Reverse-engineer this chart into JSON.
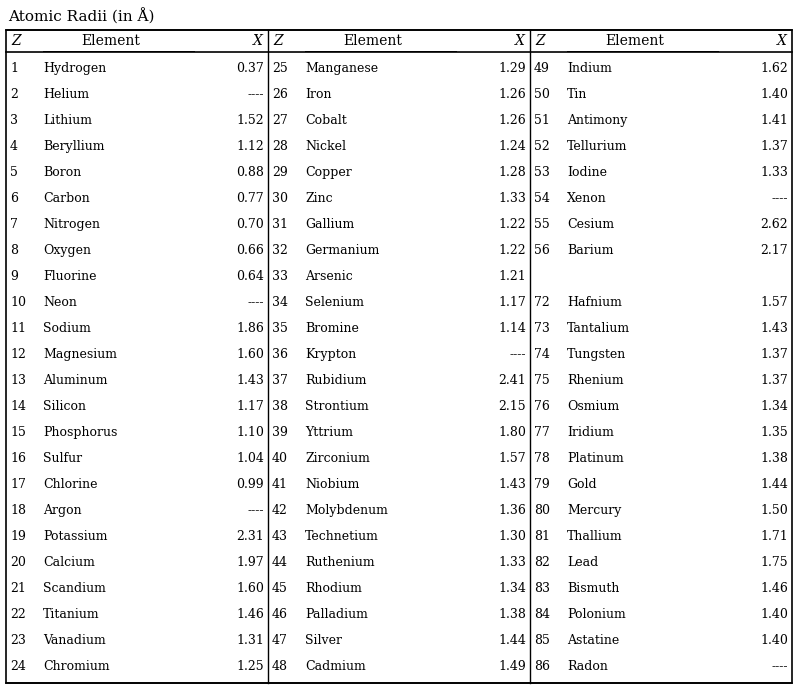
{
  "title": "Atomic Radii (in Å)",
  "col1": [
    [
      1,
      "Hydrogen",
      "0.37"
    ],
    [
      2,
      "Helium",
      "----"
    ],
    [
      3,
      "Lithium",
      "1.52"
    ],
    [
      4,
      "Beryllium",
      "1.12"
    ],
    [
      5,
      "Boron",
      "0.88"
    ],
    [
      6,
      "Carbon",
      "0.77"
    ],
    [
      7,
      "Nitrogen",
      "0.70"
    ],
    [
      8,
      "Oxygen",
      "0.66"
    ],
    [
      9,
      "Fluorine",
      "0.64"
    ],
    [
      10,
      "Neon",
      "----"
    ],
    [
      11,
      "Sodium",
      "1.86"
    ],
    [
      12,
      "Magnesium",
      "1.60"
    ],
    [
      13,
      "Aluminum",
      "1.43"
    ],
    [
      14,
      "Silicon",
      "1.17"
    ],
    [
      15,
      "Phosphorus",
      "1.10"
    ],
    [
      16,
      "Sulfur",
      "1.04"
    ],
    [
      17,
      "Chlorine",
      "0.99"
    ],
    [
      18,
      "Argon",
      "----"
    ],
    [
      19,
      "Potassium",
      "2.31"
    ],
    [
      20,
      "Calcium",
      "1.97"
    ],
    [
      21,
      "Scandium",
      "1.60"
    ],
    [
      22,
      "Titanium",
      "1.46"
    ],
    [
      23,
      "Vanadium",
      "1.31"
    ],
    [
      24,
      "Chromium",
      "1.25"
    ]
  ],
  "col2": [
    [
      25,
      "Manganese",
      "1.29"
    ],
    [
      26,
      "Iron",
      "1.26"
    ],
    [
      27,
      "Cobalt",
      "1.26"
    ],
    [
      28,
      "Nickel",
      "1.24"
    ],
    [
      29,
      "Copper",
      "1.28"
    ],
    [
      30,
      "Zinc",
      "1.33"
    ],
    [
      31,
      "Gallium",
      "1.22"
    ],
    [
      32,
      "Germanium",
      "1.22"
    ],
    [
      33,
      "Arsenic",
      "1.21"
    ],
    [
      34,
      "Selenium",
      "1.17"
    ],
    [
      35,
      "Bromine",
      "1.14"
    ],
    [
      36,
      "Krypton",
      "----"
    ],
    [
      37,
      "Rubidium",
      "2.41"
    ],
    [
      38,
      "Strontium",
      "2.15"
    ],
    [
      39,
      "Yttrium",
      "1.80"
    ],
    [
      40,
      "Zirconium",
      "1.57"
    ],
    [
      41,
      "Niobium",
      "1.43"
    ],
    [
      42,
      "Molybdenum",
      "1.36"
    ],
    [
      43,
      "Technetium",
      "1.30"
    ],
    [
      44,
      "Ruthenium",
      "1.33"
    ],
    [
      45,
      "Rhodium",
      "1.34"
    ],
    [
      46,
      "Palladium",
      "1.38"
    ],
    [
      47,
      "Silver",
      "1.44"
    ],
    [
      48,
      "Cadmium",
      "1.49"
    ]
  ],
  "col3": [
    [
      49,
      "Indium",
      "1.62"
    ],
    [
      50,
      "Tin",
      "1.40"
    ],
    [
      51,
      "Antimony",
      "1.41"
    ],
    [
      52,
      "Tellurium",
      "1.37"
    ],
    [
      53,
      "Iodine",
      "1.33"
    ],
    [
      54,
      "Xenon",
      "----"
    ],
    [
      55,
      "Cesium",
      "2.62"
    ],
    [
      56,
      "Barium",
      "2.17"
    ],
    [
      null,
      "",
      ""
    ],
    [
      72,
      "Hafnium",
      "1.57"
    ],
    [
      73,
      "Tantalium",
      "1.43"
    ],
    [
      74,
      "Tungsten",
      "1.37"
    ],
    [
      75,
      "Rhenium",
      "1.37"
    ],
    [
      76,
      "Osmium",
      "1.34"
    ],
    [
      77,
      "Iridium",
      "1.35"
    ],
    [
      78,
      "Platinum",
      "1.38"
    ],
    [
      79,
      "Gold",
      "1.44"
    ],
    [
      80,
      "Mercury",
      "1.50"
    ],
    [
      81,
      "Thallium",
      "1.71"
    ],
    [
      82,
      "Lead",
      "1.75"
    ],
    [
      83,
      "Bismuth",
      "1.46"
    ],
    [
      84,
      "Polonium",
      "1.40"
    ],
    [
      85,
      "Astatine",
      "1.40"
    ],
    [
      86,
      "Radon",
      "----"
    ]
  ],
  "bg_color": "#ffffff",
  "border_color": "#000000",
  "text_color": "#000000",
  "title_fontsize": 11,
  "header_fontsize": 10,
  "data_fontsize": 9,
  "fig_width": 7.98,
  "fig_height": 6.91,
  "dpi": 100
}
